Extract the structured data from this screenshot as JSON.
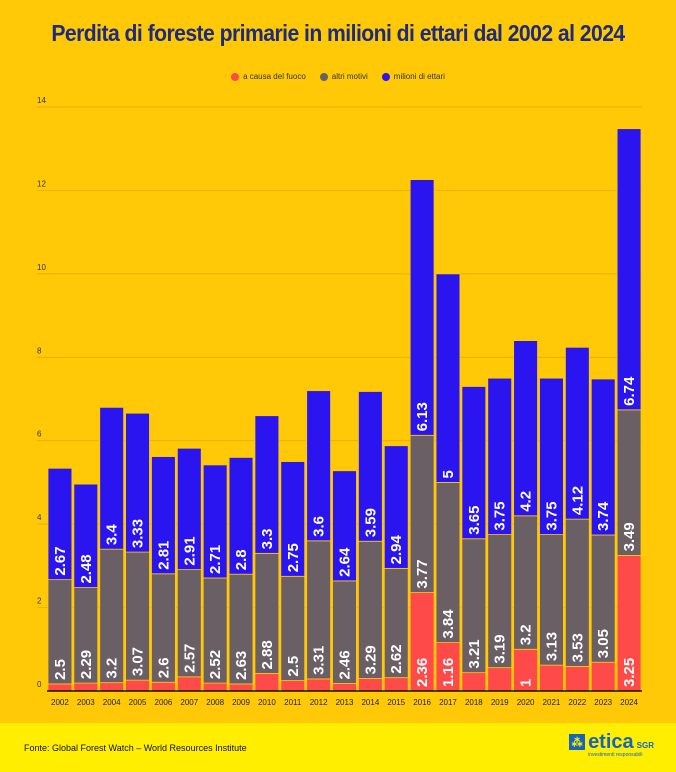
{
  "chart_data": {
    "type": "bar",
    "stacked": true,
    "title": "Perdita di foreste primarie in milioni di ettari dal 2002 al 2024",
    "xlabel": "",
    "ylabel": "",
    "ylim": [
      0,
      14
    ],
    "yticks": [
      "0",
      "2",
      "4",
      "6",
      "8",
      "10",
      "12",
      "14"
    ],
    "grid": true,
    "legend_position": "top",
    "categories": [
      "2002",
      "2003",
      "2004",
      "2005",
      "2006",
      "2007",
      "2008",
      "2009",
      "2010",
      "2011",
      "2012",
      "2013",
      "2014",
      "2015",
      "2016",
      "2017",
      "2018",
      "2019",
      "2020",
      "2021",
      "2022",
      "2023",
      "2024"
    ],
    "series": [
      {
        "name": "a causa del fuoco",
        "color": "#FF4A4A",
        "values": [
          0.17,
          0.19,
          0.2,
          0.26,
          0.21,
          0.34,
          0.19,
          0.17,
          0.42,
          0.25,
          0.29,
          0.18,
          0.3,
          0.32,
          2.36,
          1.16,
          0.44,
          0.56,
          1,
          0.62,
          0.59,
          0.69,
          3.25
        ],
        "labels": [
          "",
          "",
          "",
          "",
          "",
          "",
          "",
          "",
          "",
          "",
          "",
          "",
          "",
          "",
          "2.36",
          "1.16",
          "",
          "",
          "1",
          "",
          "",
          "",
          "3.25"
        ]
      },
      {
        "name": "altri motivi",
        "color": "#6B5F66",
        "values": [
          2.5,
          2.29,
          3.2,
          3.07,
          2.6,
          2.57,
          2.52,
          2.63,
          2.88,
          2.5,
          3.31,
          2.46,
          3.29,
          2.62,
          3.77,
          3.84,
          3.21,
          3.19,
          3.2,
          3.13,
          3.53,
          3.05,
          3.49
        ],
        "labels": [
          "2.5",
          "2.29",
          "3.2",
          "3.07",
          "2.6",
          "2.57",
          "2.52",
          "2.63",
          "2.88",
          "2.5",
          "3.31",
          "2.46",
          "3.29",
          "2.62",
          "3.77",
          "3.84",
          "3.21",
          "3.19",
          "3.2",
          "3.13",
          "3.53",
          "3.05",
          "3.49"
        ]
      },
      {
        "name": "milioni di ettari",
        "color": "#2A14F0",
        "values": [
          2.67,
          2.48,
          3.4,
          3.33,
          2.81,
          2.91,
          2.71,
          2.8,
          3.3,
          2.75,
          3.6,
          2.64,
          3.59,
          2.94,
          6.13,
          5,
          3.65,
          3.75,
          4.2,
          3.75,
          4.12,
          3.74,
          6.74
        ],
        "labels": [
          "2.67",
          "2.48",
          "3.4",
          "3.33",
          "2.81",
          "2.91",
          "2.71",
          "2.8",
          "3.3",
          "2.75",
          "3.6",
          "2.64",
          "3.59",
          "2.94",
          "6.13",
          "5",
          "3.65",
          "3.75",
          "4.2",
          "3.75",
          "4.12",
          "3.74",
          "6.74"
        ]
      }
    ]
  },
  "footer": {
    "source": "Fonte: Global Forest Watch – World Resources Institute",
    "logo_text": "etica",
    "logo_suffix": "SGR",
    "logo_tagline": "investimenti responsabili"
  }
}
